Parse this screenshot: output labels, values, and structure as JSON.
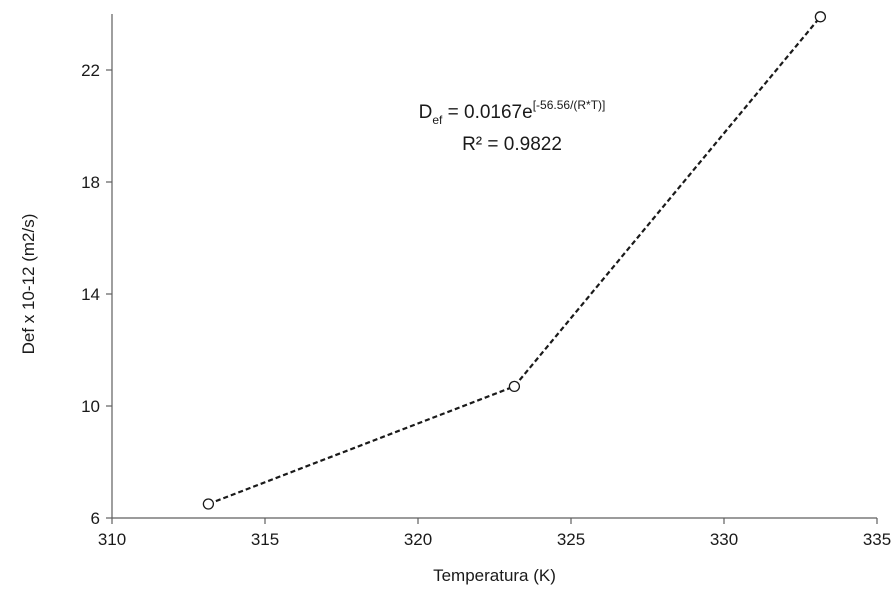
{
  "chart_data": {
    "type": "scatter",
    "xlabel": "Temperatura (K)",
    "ylabel": "Def x 10-12 (m2/s)",
    "xlim": [
      310,
      335
    ],
    "ylim": [
      6,
      24
    ],
    "xticks": [
      310,
      315,
      320,
      325,
      330,
      335
    ],
    "yticks": [
      6,
      10,
      14,
      18,
      22
    ],
    "grid": false,
    "series": [
      {
        "marker": "open-circle",
        "line_style": "dashed",
        "x": [
          313.15,
          323.15,
          333.15
        ],
        "y": [
          6.5,
          10.7,
          23.9
        ]
      }
    ],
    "annotation": {
      "equation_base": "D",
      "equation_subscript": "ef",
      "equation_mid": " = 0.0167e",
      "equation_exponent": "[-56.56/(R*T)]",
      "r_squared": "R² = 0.9822"
    }
  }
}
